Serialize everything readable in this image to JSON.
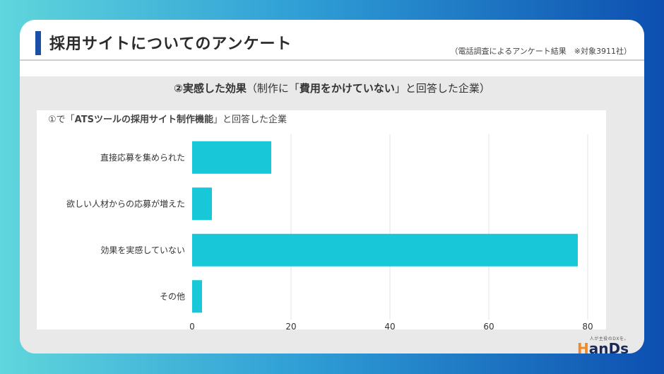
{
  "header": {
    "title": "採用サイトについてのアンケート",
    "note": "（電話調査によるアンケート結果　※対象3911社）"
  },
  "section": {
    "heading_bold": "②実感した効果",
    "heading_pre": "（制作に「",
    "heading_bold2": "費用をかけていない",
    "heading_post": "」と回答した企業）"
  },
  "chart_caption": {
    "pre": "①で「",
    "bold": "ATSツールの採用サイト制作機能",
    "post": "」と回答した企業"
  },
  "logo": {
    "sub": "人が主役のDXを。",
    "main_h": "H",
    "main_rest": "anDs"
  },
  "colors": {
    "bar": "#19c8d8",
    "grid": "#e3e3e3",
    "title_accent": "#1a4fa8"
  },
  "chart_data": {
    "type": "bar",
    "orientation": "horizontal",
    "categories": [
      "直接応募を集められた",
      "欲しい人材からの応募が増えた",
      "効果を実感していない",
      "その他"
    ],
    "values": [
      16,
      4,
      78,
      2
    ],
    "xlim": [
      0,
      84
    ],
    "xticks": [
      0,
      20,
      40,
      60,
      80
    ],
    "grid": true,
    "xlabel": "",
    "ylabel": ""
  }
}
